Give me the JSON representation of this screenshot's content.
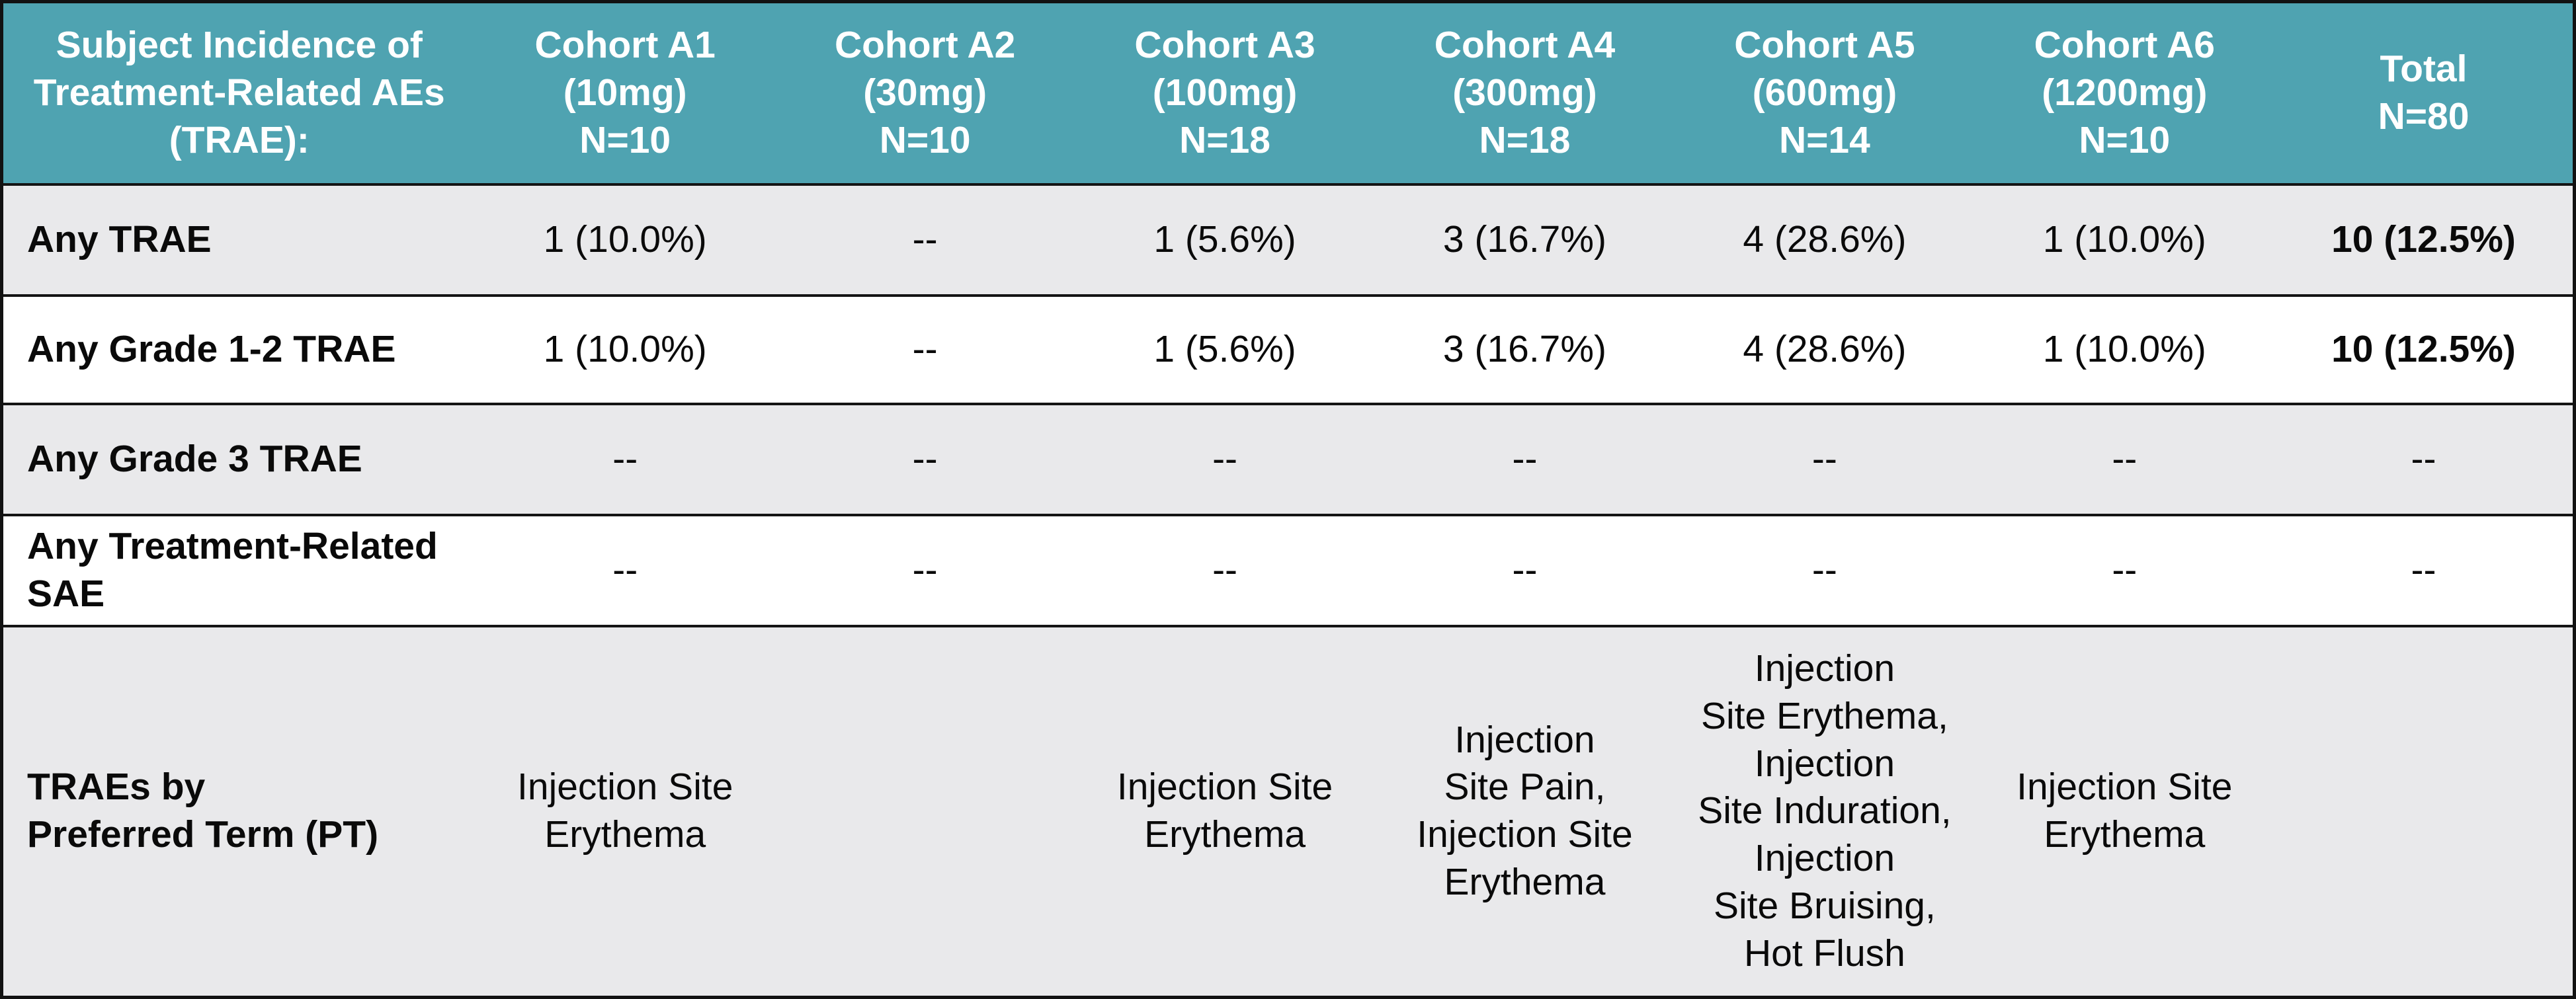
{
  "table": {
    "title_cell": "Subject Incidence of\nTreatment-Related AEs\n(TRAE):",
    "header": {
      "columns": [
        "Cohort A1\n(10mg)\nN=10",
        "Cohort A2\n(30mg)\nN=10",
        "Cohort A3\n(100mg)\nN=18",
        "Cohort A4\n(300mg)\nN=18",
        "Cohort A5\n(600mg)\nN=14",
        "Cohort A6\n(1200mg)\nN=10",
        "Total\nN=80"
      ]
    },
    "rows": [
      {
        "label": "Any TRAE",
        "values": [
          "1 (10.0%)",
          "--",
          "1 (5.6%)",
          "3 (16.7%)",
          "4 (28.6%)",
          "1 (10.0%)",
          "10 (12.5%)"
        ]
      },
      {
        "label": "Any Grade 1-2 TRAE",
        "values": [
          "1 (10.0%)",
          "--",
          "1 (5.6%)",
          "3 (16.7%)",
          "4 (28.6%)",
          "1 (10.0%)",
          "10 (12.5%)"
        ]
      },
      {
        "label": "Any Grade 3 TRAE",
        "values": [
          "--",
          "--",
          "--",
          "--",
          "--",
          "--",
          "--"
        ]
      },
      {
        "label": "Any Treatment-Related\nSAE",
        "values": [
          "--",
          "--",
          "--",
          "--",
          "--",
          "--",
          "--"
        ]
      },
      {
        "label": "TRAEs by\nPreferred Term (PT)",
        "values": [
          "Injection Site\nErythema",
          "",
          "Injection Site\nErythema",
          "Injection\nSite Pain,\nInjection Site\nErythema",
          "Injection\nSite Erythema,\nInjection\nSite Induration,\nInjection\nSite Bruising,\nHot Flush",
          "Injection Site\nErythema",
          ""
        ]
      }
    ],
    "colors": {
      "header_bg": "#4fa3b1",
      "header_text": "#ffffff",
      "row_alt_bg": "#e9e9eb",
      "row_bg": "#ffffff",
      "border": "#141414",
      "body_text": "#0a0a0a"
    }
  }
}
